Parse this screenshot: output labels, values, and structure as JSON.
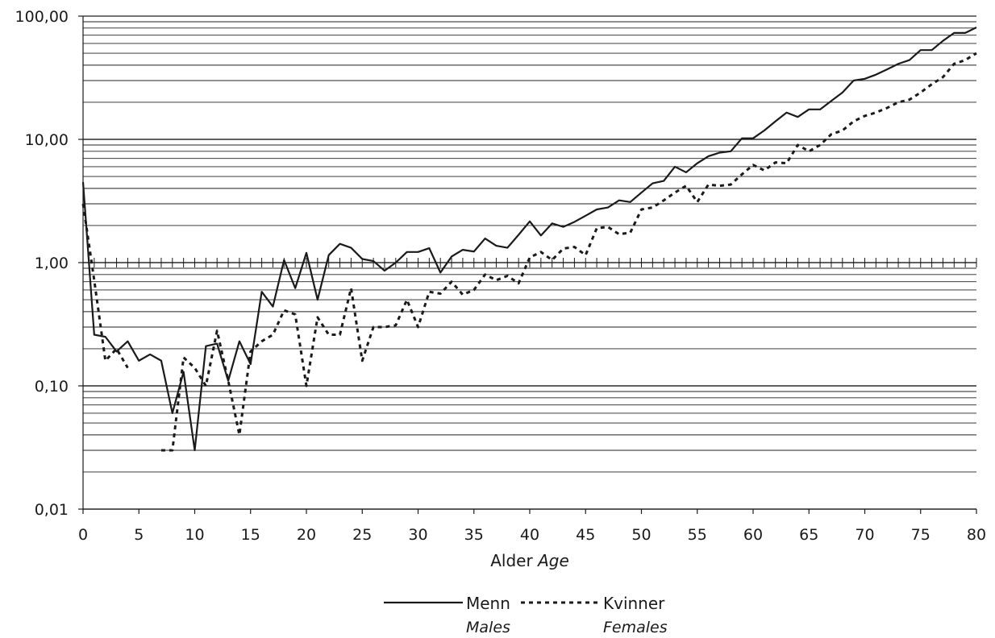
{
  "chart_data": {
    "type": "line",
    "title": "",
    "xlabel": "Alder",
    "xlabel_en": "Age",
    "ylabel": "",
    "y_scale": "log",
    "ylim": [
      0.01,
      100
    ],
    "xlim": [
      0,
      80
    ],
    "y_ticks": [
      0.01,
      0.1,
      1,
      10,
      100
    ],
    "y_tick_labels": [
      "0,01",
      "0,10",
      "1,00",
      "10,00",
      "100,00"
    ],
    "x_ticks": [
      0,
      5,
      10,
      15,
      20,
      25,
      30,
      35,
      40,
      45,
      50,
      55,
      60,
      65,
      70,
      75,
      80
    ],
    "x_tick_labels": [
      "0",
      "5",
      "10",
      "15",
      "20",
      "25",
      "30",
      "35",
      "40",
      "45",
      "50",
      "55",
      "60",
      "65",
      "70",
      "75",
      "80"
    ],
    "grid": "log minor horizontal gridlines",
    "legend_position": "bottom",
    "x": [
      0,
      1,
      2,
      3,
      4,
      5,
      6,
      7,
      8,
      9,
      10,
      11,
      12,
      13,
      14,
      15,
      16,
      17,
      18,
      19,
      20,
      21,
      22,
      23,
      24,
      25,
      26,
      27,
      28,
      29,
      30,
      31,
      32,
      33,
      34,
      35,
      36,
      37,
      38,
      39,
      40,
      41,
      42,
      43,
      44,
      45,
      46,
      47,
      48,
      49,
      50,
      51,
      52,
      53,
      54,
      55,
      56,
      57,
      58,
      59,
      60,
      61,
      62,
      63,
      64,
      65,
      66,
      67,
      68,
      69,
      70,
      71,
      72,
      73,
      74,
      75,
      76,
      77,
      78,
      79,
      80
    ],
    "series": [
      {
        "name": "Menn",
        "name_en": "Males",
        "style": "solid",
        "values": [
          4.5,
          0.26,
          0.25,
          0.19,
          0.23,
          0.16,
          0.18,
          0.16,
          0.06,
          0.13,
          0.03,
          0.21,
          0.22,
          0.11,
          0.23,
          0.15,
          0.58,
          0.44,
          1.05,
          0.62,
          1.2,
          0.5,
          1.15,
          1.42,
          1.32,
          1.07,
          1.03,
          0.86,
          1.0,
          1.22,
          1.22,
          1.31,
          0.83,
          1.12,
          1.27,
          1.23,
          1.57,
          1.37,
          1.32,
          1.68,
          2.16,
          1.66,
          2.08,
          1.95,
          2.14,
          2.4,
          2.7,
          2.8,
          3.2,
          3.1,
          3.7,
          4.4,
          4.6,
          6.0,
          5.4,
          6.4,
          7.3,
          7.8,
          8.0,
          10.2,
          10.2,
          11.8,
          14.0,
          16.5,
          15.2,
          17.5,
          17.5,
          20.5,
          24.0,
          30.0,
          31.0,
          33.5,
          37.0,
          41.0,
          44.0,
          53.0,
          53.0,
          63.0,
          73.0,
          73.0,
          81.0
        ]
      },
      {
        "name": "Kvinner",
        "name_en": "Females",
        "style": "dashed",
        "values": [
          3.0,
          0.72,
          0.16,
          0.2,
          0.14,
          null,
          null,
          0.03,
          0.03,
          0.17,
          0.14,
          0.1,
          0.28,
          0.11,
          0.04,
          0.19,
          0.23,
          0.26,
          0.41,
          0.38,
          0.1,
          0.36,
          0.26,
          0.26,
          0.62,
          0.16,
          0.3,
          0.3,
          0.31,
          0.5,
          0.3,
          0.58,
          0.56,
          0.7,
          0.55,
          0.6,
          0.8,
          0.72,
          0.78,
          0.68,
          1.1,
          1.22,
          1.05,
          1.3,
          1.34,
          1.15,
          1.9,
          1.95,
          1.7,
          1.75,
          2.7,
          2.8,
          3.2,
          3.7,
          4.2,
          3.1,
          4.3,
          4.2,
          4.3,
          5.2,
          6.2,
          5.6,
          6.5,
          6.4,
          9.0,
          8.0,
          9.0,
          11.0,
          11.8,
          14.0,
          15.5,
          16.5,
          18.0,
          20.0,
          21.0,
          24.0,
          28.0,
          32.0,
          41.0,
          44.0,
          50.0
        ]
      }
    ]
  },
  "legend": {
    "items": [
      {
        "label": "Menn",
        "sublabel": "Males"
      },
      {
        "label": "Kvinner",
        "sublabel": "Females"
      }
    ]
  },
  "colors": {
    "line": "#1a1a1a",
    "grid": "#222222",
    "background": "#ffffff"
  }
}
